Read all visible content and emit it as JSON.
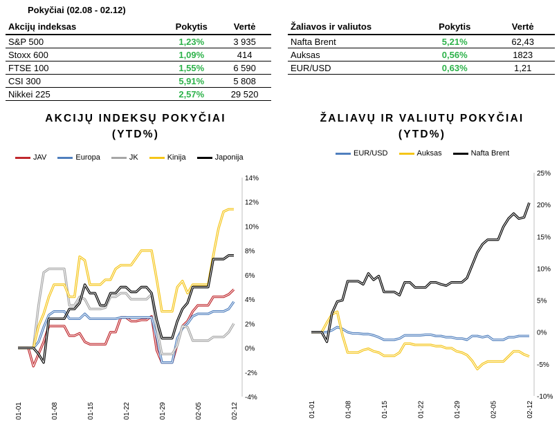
{
  "period": "Pokyčiai (02.08 - 02.12)",
  "indices_table": {
    "headers": [
      "Akcijų indeksas",
      "Pokytis",
      "Vertė"
    ],
    "rows": [
      {
        "name": "S&P 500",
        "change": "1,23%",
        "value": "3 935"
      },
      {
        "name": "Stoxx 600",
        "change": "1,09%",
        "value": "414"
      },
      {
        "name": "FTSE 100",
        "change": "1,55%",
        "value": "6 590"
      },
      {
        "name": "CSI 300",
        "change": "5,91%",
        "value": "5 808"
      },
      {
        "name": "Nikkei 225",
        "change": "2,57%",
        "value": "29 520"
      }
    ]
  },
  "commodities_table": {
    "headers": [
      "Žaliavos ir valiutos",
      "Pokytis",
      "Vertė"
    ],
    "rows": [
      {
        "name": "Nafta Brent",
        "change": "5,21%",
        "value": "62,43"
      },
      {
        "name": "Auksas",
        "change": "0,56%",
        "value": "1823"
      },
      {
        "name": "EUR/USD",
        "change": "0,63%",
        "value": "1,21"
      }
    ]
  },
  "colors": {
    "positive": "#2db24a"
  },
  "chart_data": [
    {
      "type": "line",
      "title": [
        "AKCIJŲ INDEKSŲ POKYČIAI",
        "(YTD%)"
      ],
      "y_axis": "right",
      "ylim": [
        -4,
        14
      ],
      "ytick_step": 2,
      "yticks": [
        "-4%",
        "-2%",
        "0%",
        "2%",
        "4%",
        "6%",
        "8%",
        "10%",
        "12%",
        "14%"
      ],
      "x_ticks": [
        "01-01",
        "01-08",
        "01-15",
        "01-22",
        "01-29",
        "02-05",
        "02-12"
      ],
      "x": [
        1,
        2,
        3,
        4,
        5,
        6,
        7,
        8,
        9,
        10,
        11,
        12,
        13,
        14,
        15,
        16,
        17,
        18,
        19,
        20,
        21,
        22,
        23,
        24,
        25,
        26,
        27,
        28,
        29,
        30,
        31,
        32,
        33,
        34,
        35,
        36,
        37,
        38,
        39,
        40,
        41,
        42,
        43
      ],
      "legend": "top",
      "series": [
        {
          "name": "JAV",
          "color": "#c0282d",
          "x": [
            1,
            3,
            4,
            5,
            6,
            7,
            8,
            9,
            10,
            11,
            12,
            13,
            14,
            15,
            16,
            17,
            18,
            19,
            20,
            21,
            22,
            23,
            24,
            25,
            26,
            27,
            28,
            29,
            30,
            31,
            32,
            33,
            34,
            35,
            36,
            37,
            38,
            39,
            40,
            41,
            42,
            43
          ],
          "values": [
            0,
            0,
            -1.5,
            -0.5,
            0.5,
            1.8,
            1.8,
            1.8,
            1.8,
            1,
            1,
            1.2,
            0.5,
            0.3,
            0.3,
            0.3,
            0.3,
            1.3,
            1.3,
            2.5,
            2.5,
            2.2,
            2.2,
            2.3,
            2.3,
            2.6,
            -0.2,
            -1.2,
            -1.2,
            -1.2,
            0.3,
            1.8,
            2.2,
            3,
            3.5,
            3.5,
            3.5,
            4.2,
            4.2,
            4.2,
            4.4,
            4.8
          ]
        },
        {
          "name": "Europa",
          "color": "#4f7fbe",
          "x": [
            1,
            3,
            4,
            5,
            6,
            7,
            8,
            9,
            10,
            11,
            12,
            13,
            14,
            15,
            16,
            17,
            18,
            19,
            20,
            21,
            22,
            23,
            24,
            25,
            26,
            27,
            28,
            29,
            30,
            31,
            32,
            33,
            34,
            35,
            36,
            37,
            38,
            39,
            40,
            41,
            42,
            43
          ],
          "values": [
            0,
            0,
            0,
            0.5,
            1.7,
            2.7,
            3,
            3,
            3,
            2.4,
            2.4,
            2.4,
            2.8,
            2.4,
            2.4,
            2.4,
            2.4,
            2.4,
            2.4,
            2.5,
            2.5,
            2.5,
            2.5,
            2.5,
            2.5,
            2.5,
            0.9,
            -1.2,
            -1.2,
            -1.2,
            0.8,
            1.6,
            2,
            2.6,
            2.8,
            2.8,
            2.8,
            3,
            3,
            3,
            3.2,
            3.8
          ]
        },
        {
          "name": "JK",
          "color": "#a6a6a6",
          "x": [
            1,
            3,
            4,
            5,
            6,
            7,
            8,
            9,
            10,
            11,
            12,
            13,
            14,
            15,
            16,
            17,
            18,
            19,
            20,
            21,
            22,
            23,
            24,
            25,
            26,
            27,
            28,
            29,
            30,
            31,
            32,
            33,
            34,
            35,
            36,
            37,
            38,
            39,
            40,
            41,
            42,
            43
          ],
          "values": [
            0,
            0,
            0,
            3.5,
            6.2,
            6.5,
            6.5,
            6.5,
            6.5,
            3.5,
            3.5,
            4.2,
            4,
            3.2,
            3.2,
            3.2,
            3.3,
            4.2,
            4.2,
            4.5,
            4.5,
            4,
            4,
            4,
            4,
            4.4,
            1.6,
            -0.5,
            -0.5,
            -0.5,
            0.2,
            1.8,
            1.7,
            0.6,
            0.6,
            0.6,
            0.6,
            0.9,
            0.9,
            0.9,
            1.3,
            2
          ]
        },
        {
          "name": "Kinija",
          "color": "#f5c518",
          "x": [
            1,
            3,
            4,
            5,
            6,
            7,
            8,
            9,
            10,
            11,
            12,
            13,
            14,
            15,
            16,
            17,
            18,
            19,
            20,
            21,
            22,
            23,
            24,
            25,
            26,
            27,
            28,
            29,
            30,
            31,
            32,
            33,
            34,
            35,
            36,
            37,
            38,
            39,
            40,
            41,
            42,
            43
          ],
          "values": [
            0,
            0,
            0,
            1.8,
            2.8,
            4.2,
            5.2,
            5.2,
            5.2,
            4.2,
            4.2,
            7.5,
            7.2,
            5.2,
            5.2,
            5.2,
            5.6,
            5.6,
            6.5,
            6.8,
            6.8,
            6.8,
            7.4,
            8,
            8,
            8,
            5.6,
            3,
            3,
            3,
            5,
            5.5,
            4.5,
            5.2,
            5.2,
            5.2,
            5.2,
            7.6,
            9.8,
            11.2,
            11.4,
            11.4
          ]
        },
        {
          "name": "Japonija",
          "color": "#000000",
          "x": [
            1,
            3,
            4,
            5,
            6,
            7,
            8,
            9,
            10,
            11,
            12,
            13,
            14,
            15,
            16,
            17,
            18,
            19,
            20,
            21,
            22,
            23,
            24,
            25,
            26,
            27,
            28,
            29,
            30,
            31,
            32,
            33,
            34,
            35,
            36,
            37,
            38,
            39,
            40,
            41,
            42,
            43
          ],
          "values": [
            0,
            0,
            0,
            -0.5,
            -1.2,
            2.4,
            2.4,
            2.4,
            2.4,
            3.2,
            3.2,
            3.7,
            5.2,
            4.5,
            4.5,
            3.5,
            3.5,
            4.5,
            4.5,
            5,
            5,
            4.6,
            4.6,
            5,
            5,
            4.5,
            2.3,
            0.8,
            0.8,
            0.8,
            2.2,
            3.2,
            3.7,
            5,
            5,
            5,
            5,
            7.3,
            7.3,
            7.3,
            7.6,
            7.6
          ]
        }
      ]
    },
    {
      "type": "line",
      "title": [
        "ŽALIAVŲ IR VALIUTŲ POKYČIAI",
        "(YTD%)"
      ],
      "y_axis": "right",
      "ylim": [
        -10,
        25
      ],
      "ytick_step": 5,
      "yticks": [
        "-10%",
        "-5%",
        "0%",
        "5%",
        "10%",
        "15%",
        "20%",
        "25%"
      ],
      "x_ticks": [
        "01-01",
        "01-08",
        "01-15",
        "01-22",
        "01-29",
        "02-05",
        "02-12"
      ],
      "legend": "top",
      "series": [
        {
          "name": "EUR/USD",
          "color": "#4f7fbe",
          "x": [
            1,
            3,
            4,
            5,
            6,
            7,
            8,
            9,
            10,
            11,
            12,
            13,
            14,
            15,
            16,
            17,
            18,
            19,
            20,
            21,
            22,
            23,
            24,
            25,
            26,
            27,
            28,
            29,
            30,
            31,
            32,
            33,
            34,
            35,
            36,
            37,
            38,
            39,
            40,
            41,
            42,
            43
          ],
          "values": [
            0,
            0,
            0,
            0.3,
            0.8,
            0.5,
            0,
            -0.2,
            -0.2,
            -0.3,
            -0.3,
            -0.5,
            -0.8,
            -1.2,
            -1.2,
            -1.2,
            -1,
            -0.5,
            -0.5,
            -0.5,
            -0.5,
            -0.4,
            -0.4,
            -0.6,
            -0.6,
            -0.8,
            -0.8,
            -1,
            -1,
            -1.2,
            -0.6,
            -0.6,
            -0.8,
            -0.6,
            -1.2,
            -1.2,
            -1.2,
            -0.8,
            -0.8,
            -0.6,
            -0.6,
            -0.6
          ]
        },
        {
          "name": "Auksas",
          "color": "#f5c518",
          "x": [
            1,
            3,
            4,
            5,
            6,
            7,
            8,
            9,
            10,
            11,
            12,
            13,
            14,
            15,
            16,
            17,
            18,
            19,
            20,
            21,
            22,
            23,
            24,
            25,
            26,
            27,
            28,
            29,
            30,
            31,
            32,
            33,
            34,
            35,
            36,
            37,
            38,
            39,
            40,
            41,
            42,
            43
          ],
          "values": [
            0,
            0,
            1.5,
            2.8,
            3.2,
            -0.5,
            -3.2,
            -3.2,
            -3.2,
            -2.8,
            -2.6,
            -3,
            -3.2,
            -3.7,
            -3.7,
            -3.7,
            -3.2,
            -1.8,
            -1.8,
            -2,
            -2,
            -2,
            -2,
            -2.2,
            -2.2,
            -2.5,
            -2.5,
            -3,
            -3.2,
            -3.6,
            -4.5,
            -5.8,
            -5,
            -4.6,
            -4.6,
            -4.6,
            -4.6,
            -3.8,
            -3,
            -3,
            -3.5,
            -3.8
          ]
        },
        {
          "name": "Nafta Brent",
          "color": "#000000",
          "x": [
            1,
            3,
            4,
            5,
            6,
            7,
            8,
            9,
            10,
            11,
            12,
            13,
            14,
            15,
            16,
            17,
            18,
            19,
            20,
            21,
            22,
            23,
            24,
            25,
            26,
            27,
            28,
            29,
            30,
            31,
            32,
            33,
            34,
            35,
            36,
            37,
            38,
            39,
            40,
            41,
            42,
            43
          ],
          "values": [
            0,
            0,
            -1.5,
            3,
            4.8,
            5,
            8,
            8,
            8,
            7.5,
            9.2,
            8.2,
            8.8,
            6.3,
            6.3,
            6.3,
            5.8,
            7.8,
            7.8,
            7,
            7,
            7,
            7.8,
            7.8,
            7.5,
            7.3,
            7.8,
            7.8,
            7.8,
            8.5,
            10.5,
            12.5,
            13.8,
            14.5,
            14.5,
            14.5,
            16.5,
            17.8,
            18.6,
            17.8,
            18,
            20.3
          ]
        }
      ]
    }
  ]
}
